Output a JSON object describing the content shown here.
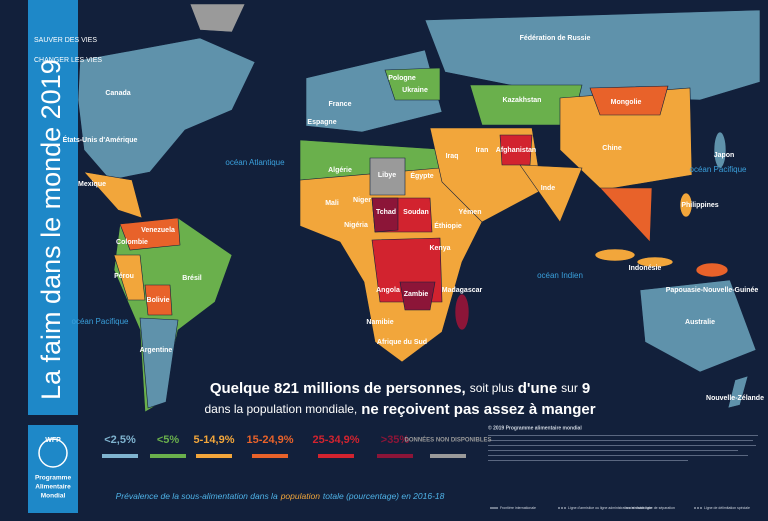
{
  "header": {
    "tagline": [
      "SAUVER DES VIES",
      "CHANGER LES VIES"
    ],
    "title": "La faim dans le monde 2019"
  },
  "logo": {
    "acronym": "WFP",
    "name": [
      "Programme",
      "Alimentaire",
      "Mondial"
    ]
  },
  "headline": {
    "line1": [
      "Quelque 821 millions de personnes,",
      "soit plus",
      "d'une",
      "sur",
      "9"
    ],
    "line2": [
      "dans la population mondiale,",
      "ne reçoivent pas assez à manger"
    ]
  },
  "legend": {
    "items": [
      {
        "label": "<2,5%",
        "color": "#7fb3cf"
      },
      {
        "label": "<5%",
        "color": "#6ab04c"
      },
      {
        "label": "5-14,9%",
        "color": "#f2a63b"
      },
      {
        "label": "15-24,9%",
        "color": "#e8622a"
      },
      {
        "label": "25-34,9%",
        "color": "#d2232f"
      },
      {
        "label": ">35%",
        "color": "#8c1538"
      },
      {
        "label": "DONNÉES NON DISPONIBLES",
        "color": "#9a9a9a"
      }
    ],
    "caption": [
      "Prévalence de la sous-alimentation dans la",
      "population",
      "totale (pourcentage) en 2016-18"
    ]
  },
  "oceans": [
    "océan Atlantique",
    "océan Pacifique",
    "océan Indien",
    "océan Pacifique"
  ],
  "countries": [
    "Canada",
    "États-Unis d'Amérique",
    "Mexique",
    "Venezuela",
    "Colombie",
    "Pérou",
    "Brésil",
    "Bolivie",
    "Argentine",
    "Fédération de Russie",
    "Kazakhstan",
    "Mongolie",
    "Chine",
    "Inde",
    "Japon",
    "Philippines",
    "Indonésie",
    "Australie",
    "Nouvelle-Zélande",
    "France",
    "Espagne",
    "Pologne",
    "Ukraine",
    "Algérie",
    "Libye",
    "Égypte",
    "Mali",
    "Niger",
    "Tchad",
    "Soudan",
    "Éthiopie",
    "Nigéria",
    "Kenya",
    "Angola",
    "Zambie",
    "Namibie",
    "Madagascar",
    "Afrique du Sud",
    "Iraq",
    "Iran",
    "Afghanistan",
    "Yémen",
    "Papouasie-Nouvelle-Guinée"
  ],
  "footer": {
    "copyright": "© 2019 Programme alimentaire mondial",
    "lines": [
      "Frontière internationale",
      "Ligne d'armistice ou ligne administrative internationale",
      "Autre ligne de séparation",
      "Ligne de délimitation spéciale"
    ]
  }
}
